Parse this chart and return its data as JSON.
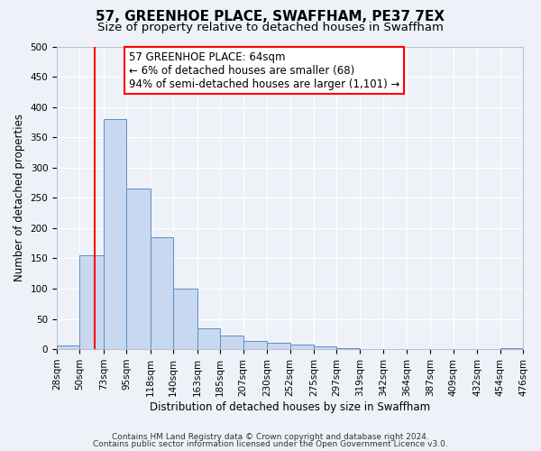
{
  "title": "57, GREENHOE PLACE, SWAFFHAM, PE37 7EX",
  "subtitle": "Size of property relative to detached houses in Swaffham",
  "xlabel": "Distribution of detached houses by size in Swaffham",
  "ylabel": "Number of detached properties",
  "bin_edges": [
    28,
    50,
    73,
    95,
    118,
    140,
    163,
    185,
    207,
    230,
    252,
    275,
    297,
    319,
    342,
    364,
    387,
    409,
    432,
    454,
    476
  ],
  "bar_heights": [
    6,
    155,
    380,
    265,
    185,
    100,
    35,
    22,
    13,
    10,
    7,
    4,
    2,
    0,
    0,
    0,
    0,
    0,
    0,
    2
  ],
  "bar_color": "#c8d8f0",
  "bar_edge_color": "#5b8fc9",
  "vline_x": 64,
  "vline_color": "red",
  "annotation_line1": "57 GREENHOE PLACE: 64sqm",
  "annotation_line2": "← 6% of detached houses are smaller (68)",
  "annotation_line3": "94% of semi-detached houses are larger (1,101) →",
  "annotation_box_color": "white",
  "annotation_box_edge_color": "red",
  "ylim": [
    0,
    500
  ],
  "yticks": [
    0,
    50,
    100,
    150,
    200,
    250,
    300,
    350,
    400,
    450,
    500
  ],
  "footer_line1": "Contains HM Land Registry data © Crown copyright and database right 2024.",
  "footer_line2": "Contains public sector information licensed under the Open Government Licence v3.0.",
  "background_color": "#eef2f8",
  "grid_color": "white",
  "title_fontsize": 11,
  "subtitle_fontsize": 9.5,
  "axis_label_fontsize": 8.5,
  "tick_fontsize": 7.5,
  "annotation_fontsize": 8.5,
  "footer_fontsize": 6.5
}
